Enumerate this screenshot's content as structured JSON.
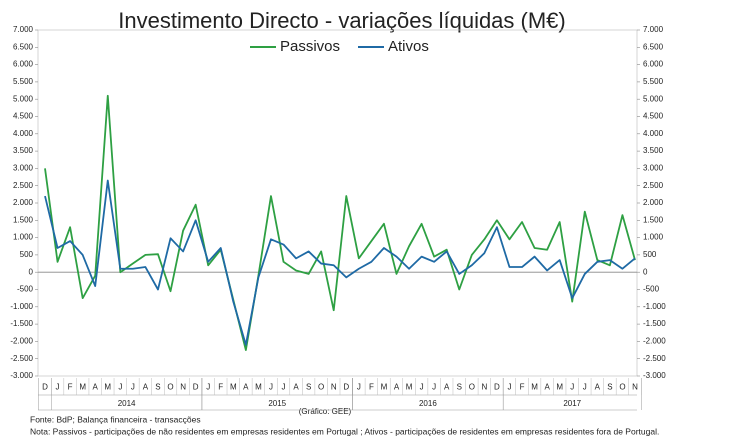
{
  "chart_data": {
    "type": "line",
    "title": "Investimento  Directo - variações líquidas (M€)",
    "credit": "(Gráfico: GEE)",
    "source": "Fonte: BdP; Balança financeira - transacções",
    "note": "Nota: Passivos - participações de não residentes em empresas residentes em Portugal ; Ativos - participações de residentes em empresas residentes fora de Portugal.",
    "categories": [
      "D",
      "J",
      "F",
      "M",
      "A",
      "M",
      "J",
      "J",
      "A",
      "S",
      "O",
      "N",
      "D",
      "J",
      "F",
      "M",
      "A",
      "M",
      "J",
      "J",
      "A",
      "S",
      "O",
      "N",
      "D",
      "J",
      "F",
      "M",
      "A",
      "M",
      "J",
      "J",
      "A",
      "S",
      "O",
      "N",
      "D",
      "J",
      "F",
      "M",
      "A",
      "M",
      "J",
      "J",
      "A",
      "S",
      "O",
      "N"
    ],
    "years": [
      "2014",
      "2015",
      "2016",
      "2017"
    ],
    "series": [
      {
        "name": "Passivos",
        "color": "#2ea043",
        "values": [
          3000,
          300,
          1300,
          -750,
          -100,
          5100,
          0,
          250,
          500,
          520,
          -550,
          1200,
          1950,
          200,
          650,
          -800,
          -2250,
          -100,
          2200,
          300,
          50,
          -50,
          600,
          -1100,
          2200,
          400,
          900,
          1400,
          -50,
          750,
          1400,
          450,
          650,
          -500,
          500,
          950,
          1500,
          950,
          1450,
          700,
          650,
          1450,
          -850,
          1750,
          350,
          200,
          1650,
          350
        ]
      },
      {
        "name": "Ativos",
        "color": "#1f6aa5",
        "values": [
          2200,
          700,
          900,
          500,
          -400,
          2650,
          100,
          100,
          150,
          -500,
          980,
          600,
          1500,
          300,
          700,
          -850,
          -2100,
          -150,
          950,
          800,
          400,
          600,
          250,
          200,
          -150,
          100,
          300,
          700,
          450,
          100,
          450,
          300,
          600,
          -50,
          200,
          550,
          1300,
          150,
          150,
          450,
          50,
          350,
          -750,
          -50,
          300,
          350,
          100,
          400
        ]
      }
    ],
    "ylim": [
      -3000,
      7000
    ],
    "yticks": [
      {
        "value": -3000,
        "label": "-3.000"
      },
      {
        "value": -2500,
        "label": "-2.500"
      },
      {
        "value": -2000,
        "label": "-2.000"
      },
      {
        "value": -1500,
        "label": "-1.500"
      },
      {
        "value": -1000,
        "label": "-1.000"
      },
      -500,
      0,
      500,
      {
        "value": 1000,
        "label": "1.000"
      },
      {
        "value": 1500,
        "label": "1.500"
      },
      {
        "value": 2000,
        "label": "2.000"
      },
      {
        "value": 2500,
        "label": "2.500"
      },
      {
        "value": 3000,
        "label": "3.000"
      },
      {
        "value": 3500,
        "label": "3.500"
      },
      {
        "value": 4000,
        "label": "4.000"
      },
      {
        "value": 4500,
        "label": "4.500"
      },
      {
        "value": 5000,
        "label": "5.000"
      },
      {
        "value": 5500,
        "label": "5.500"
      },
      {
        "value": 6000,
        "label": "6.000"
      },
      {
        "value": 6500,
        "label": "6.500"
      },
      {
        "value": 7000,
        "label": "7.000"
      }
    ],
    "y2lim": [
      -3000,
      7000
    ],
    "y2ticks": [
      {
        "value": -3000,
        "label": "-3.000"
      },
      {
        "value": -2500,
        "label": "-2.500"
      },
      {
        "value": -2000,
        "label": "-2.000"
      },
      {
        "value": -1500,
        "label": "-1.500"
      },
      {
        "value": -1000,
        "label": "-1.000"
      },
      -500,
      0,
      500,
      {
        "value": 1000,
        "label": "1.000"
      },
      {
        "value": 1500,
        "label": "1.500"
      },
      {
        "value": 2000,
        "label": "2.000"
      },
      {
        "value": 2500,
        "label": "2.500"
      },
      {
        "value": 3000,
        "label": "3.000"
      },
      {
        "value": 3500,
        "label": "3.500"
      },
      {
        "value": 4000,
        "label": "4.000"
      },
      {
        "value": 4500,
        "label": "4.500"
      },
      {
        "value": 5000,
        "label": "5.000"
      },
      {
        "value": 5500,
        "label": "5.500"
      },
      {
        "value": 6000,
        "label": "6.000"
      },
      {
        "value": 6500,
        "label": "6.500"
      },
      {
        "value": 7000,
        "label": "7.000"
      }
    ],
    "grid": false
  }
}
